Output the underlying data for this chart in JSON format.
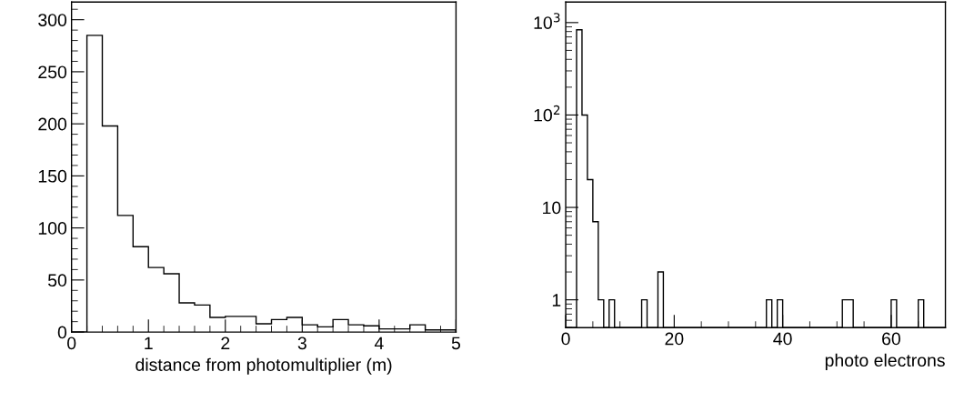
{
  "chart_data": [
    {
      "type": "histogram",
      "xlabel": "distance from photomultiplier (m)",
      "color": "#000000",
      "bins": [
        0,
        0.2,
        0.4,
        0.6,
        0.8,
        1.0,
        1.2,
        1.4,
        1.6,
        1.8,
        2.0,
        2.2,
        2.4,
        2.6,
        2.8,
        3.0,
        3.2,
        3.4,
        3.6,
        3.8,
        4.0,
        4.2,
        4.4,
        4.6,
        4.8,
        5.0
      ],
      "values": [
        0,
        285,
        198,
        112,
        82,
        62,
        56,
        28,
        26,
        14,
        15,
        15,
        8,
        12,
        14,
        7,
        5,
        12,
        7,
        6,
        3,
        3,
        7,
        2,
        2
      ],
      "xlim": [
        0,
        5
      ],
      "xticks": [
        0,
        1,
        2,
        3,
        4,
        5
      ],
      "ylim": [
        0,
        317
      ],
      "yticks": [
        0,
        50,
        100,
        150,
        200,
        250,
        300
      ],
      "grid": false
    },
    {
      "type": "histogram",
      "xlabel": "photo electrons",
      "color": "#000000",
      "log": "y",
      "bins": [
        0,
        1,
        2,
        3,
        4,
        5,
        6,
        7,
        8,
        9,
        10,
        11,
        12,
        13,
        14,
        15,
        16,
        17,
        18,
        19,
        20,
        21,
        22,
        23,
        24,
        25,
        26,
        27,
        28,
        29,
        30,
        31,
        32,
        33,
        34,
        35,
        36,
        37,
        38,
        39,
        40,
        41,
        42,
        43,
        44,
        45,
        46,
        47,
        48,
        49,
        50,
        51,
        52,
        53,
        54,
        55,
        56,
        57,
        58,
        59,
        60,
        61,
        62,
        63,
        64,
        65,
        66,
        67,
        68,
        69,
        70
      ],
      "values": [
        null,
        null,
        835,
        100,
        20,
        7,
        1,
        null,
        1,
        null,
        null,
        null,
        null,
        null,
        1,
        null,
        null,
        2,
        null,
        null,
        null,
        null,
        null,
        null,
        null,
        null,
        null,
        null,
        null,
        null,
        null,
        null,
        null,
        null,
        null,
        null,
        null,
        1,
        null,
        1,
        null,
        null,
        null,
        null,
        null,
        null,
        null,
        null,
        null,
        null,
        null,
        1,
        1,
        null,
        null,
        null,
        null,
        null,
        null,
        null,
        1,
        null,
        null,
        null,
        null,
        1,
        null,
        null,
        null,
        null
      ],
      "xlim": [
        0,
        70
      ],
      "xticks": [
        0,
        20,
        40,
        60
      ],
      "ylim": [
        0.5,
        1670
      ],
      "yticks": [
        1,
        10,
        {
          "value": 100,
          "label": "10$^{2}$"
        },
        {
          "value": 1000,
          "label": "10$^{3}$"
        }
      ],
      "grid": false
    }
  ]
}
